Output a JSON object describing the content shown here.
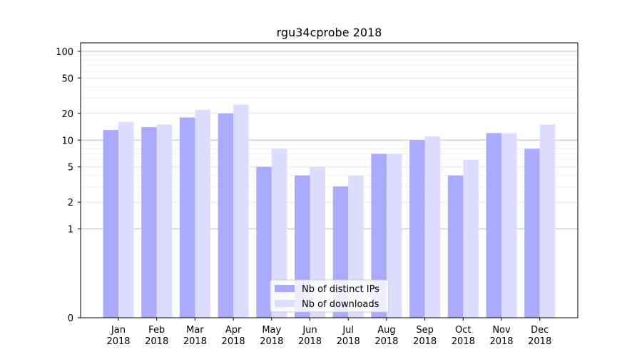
{
  "chart_data": {
    "type": "bar",
    "title": "rgu34cprobe 2018",
    "xlabel": "",
    "ylabel": "",
    "y_scale": "symlog",
    "ylim": [
      0,
      100
    ],
    "y_ticks": [
      0,
      1,
      2,
      5,
      10,
      20,
      50,
      100
    ],
    "grid": true,
    "legend_position": "bottom-center",
    "categories": [
      [
        "Jan",
        "2018"
      ],
      [
        "Feb",
        "2018"
      ],
      [
        "Mar",
        "2018"
      ],
      [
        "Apr",
        "2018"
      ],
      [
        "May",
        "2018"
      ],
      [
        "Jun",
        "2018"
      ],
      [
        "Jul",
        "2018"
      ],
      [
        "Aug",
        "2018"
      ],
      [
        "Sep",
        "2018"
      ],
      [
        "Oct",
        "2018"
      ],
      [
        "Nov",
        "2018"
      ],
      [
        "Dec",
        "2018"
      ]
    ],
    "series": [
      {
        "name": "Nb of distinct IPs",
        "color": "#aaaaff",
        "values": [
          13,
          14,
          18,
          20,
          5,
          4,
          3,
          7,
          10,
          4,
          12,
          8
        ]
      },
      {
        "name": "Nb of downloads",
        "color": "#ddddff",
        "values": [
          16,
          15,
          22,
          25,
          8,
          5,
          4,
          7,
          11,
          6,
          12,
          15
        ]
      }
    ]
  }
}
